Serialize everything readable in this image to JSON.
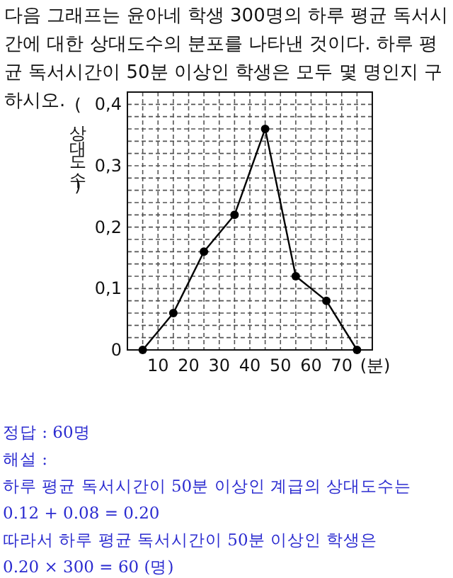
{
  "chart_data": {
    "type": "line",
    "title": "다음 그래프는 윤아네 학생 300명의 하루 평균 독서시간에 대한 상대도수의 분포를 나타낸 것이다. 하루 평균 독서시간이 50분 이상인 학생은 모두 몇 명인지 구하시오.",
    "xlabel": "(분)",
    "ylabel": "(상대도수)",
    "x": [
      5,
      15,
      25,
      35,
      45,
      55,
      65,
      75
    ],
    "series": [
      {
        "color": "#000000",
        "values": [
          0,
          0.06,
          0.16,
          0.22,
          0.36,
          0.12,
          0.08,
          0
        ]
      }
    ],
    "xlim": [
      0,
      80
    ],
    "ylim": [
      0,
      0.42
    ],
    "xticks": [
      {
        "value": 5,
        "label": null
      },
      10,
      {
        "value": 15,
        "label": null
      },
      20,
      {
        "value": 25,
        "label": null
      },
      30,
      {
        "value": 35,
        "label": null
      },
      40,
      {
        "value": 45,
        "label": null
      },
      50,
      {
        "value": 55,
        "label": null
      },
      60,
      {
        "value": 65,
        "label": null
      },
      70,
      {
        "value": 75,
        "label": null
      }
    ],
    "yticks": [
      0,
      {
        "value": 0.02,
        "label": null
      },
      {
        "value": 0.04,
        "label": null
      },
      {
        "value": 0.06,
        "label": null
      },
      {
        "value": 0.08,
        "label": null
      },
      {
        "value": 0.1,
        "label": "0,1"
      },
      {
        "value": 0.12,
        "label": null
      },
      {
        "value": 0.14,
        "label": null
      },
      {
        "value": 0.16,
        "label": null
      },
      {
        "value": 0.18,
        "label": null
      },
      {
        "value": 0.2,
        "label": "0,2"
      },
      {
        "value": 0.22,
        "label": null
      },
      {
        "value": 0.24,
        "label": null
      },
      {
        "value": 0.26,
        "label": null
      },
      {
        "value": 0.28,
        "label": null
      },
      {
        "value": 0.3,
        "label": "0,3"
      },
      {
        "value": 0.32,
        "label": null
      },
      {
        "value": 0.34,
        "label": null
      },
      {
        "value": 0.36,
        "label": null
      },
      {
        "value": 0.38,
        "label": null
      },
      {
        "value": 0.4,
        "label": "0,4"
      }
    ],
    "grid": true,
    "marker": "circle",
    "line_style": "solid",
    "annotations": [
      "정답 : 60명",
      "해설 :",
      "하루 평균 독서시간이 50분 이상인 계급의 상대도수는",
      "0.12 + 0.08 = 0.20",
      "따라서 하루 평균 독서시간이 50분 이상인 학생은",
      "0.20 × 300 = 60 (명)"
    ]
  }
}
